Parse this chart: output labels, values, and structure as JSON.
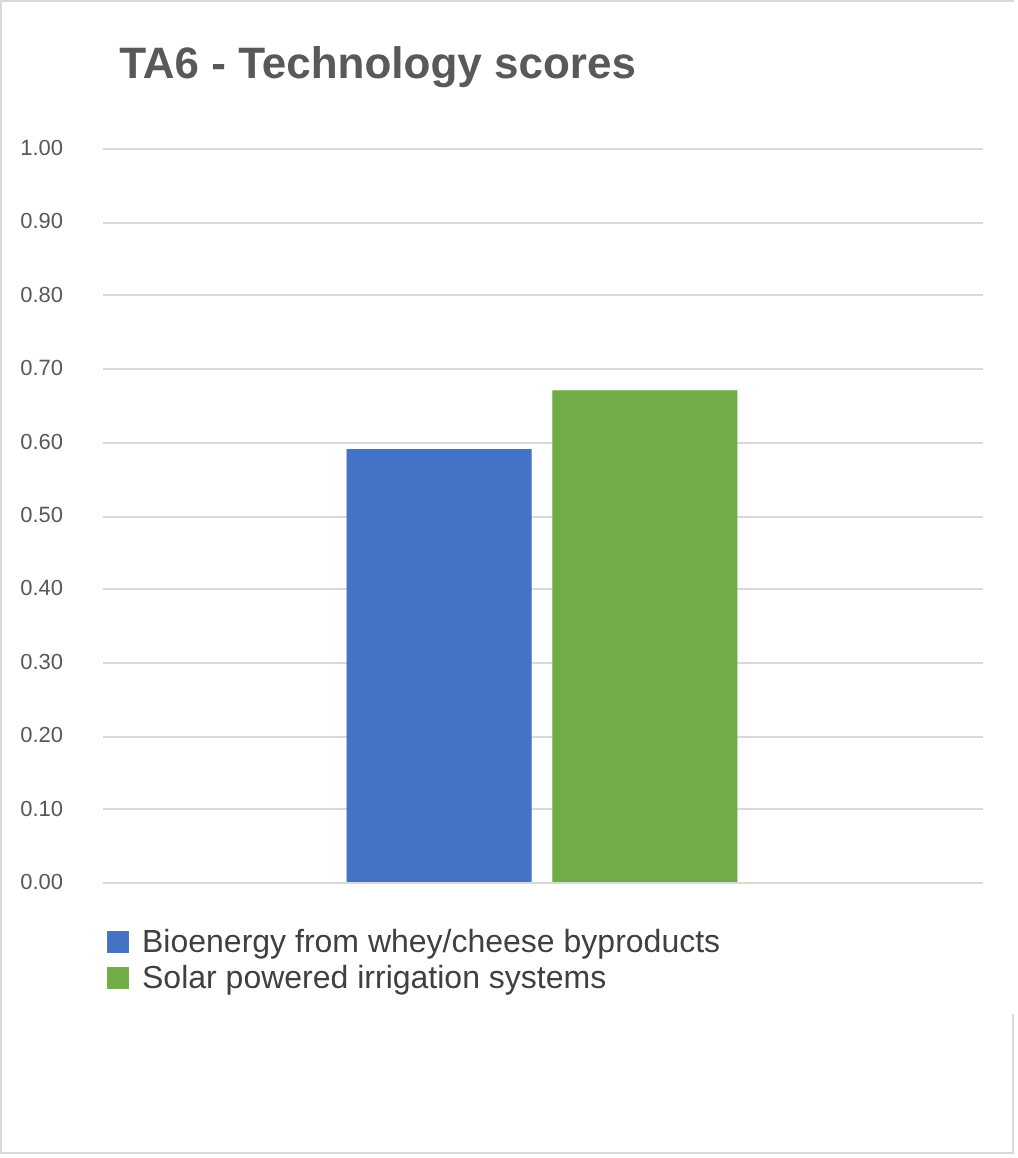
{
  "chart_data": {
    "type": "bar",
    "title": "TA6  -  Technology scores",
    "categories": [
      null
    ],
    "series": [
      {
        "name": "Bioenergy from whey/cheese byproducts",
        "color": "#4472c4",
        "values": [
          0.59
        ]
      },
      {
        "name": "Solar powered irrigation systems",
        "color": "#70ad47",
        "values": [
          0.67
        ]
      }
    ],
    "ylim": [
      0,
      1
    ],
    "yticks": [
      {
        "value": 0,
        "label": "0.00"
      },
      {
        "value": 0.1,
        "label": "0.10"
      },
      {
        "value": 0.2,
        "label": "0.20"
      },
      {
        "value": 0.3,
        "label": "0.30"
      },
      {
        "value": 0.4,
        "label": "0.40"
      },
      {
        "value": 0.5,
        "label": "0.50"
      },
      {
        "value": 0.6,
        "label": "0.60"
      },
      {
        "value": 0.7,
        "label": "0.70"
      },
      {
        "value": 0.8,
        "label": "0.80"
      },
      {
        "value": 0.9,
        "label": "0.90"
      },
      {
        "value": 1,
        "label": "1.00"
      }
    ],
    "grid": "y",
    "legend": "bottom"
  }
}
